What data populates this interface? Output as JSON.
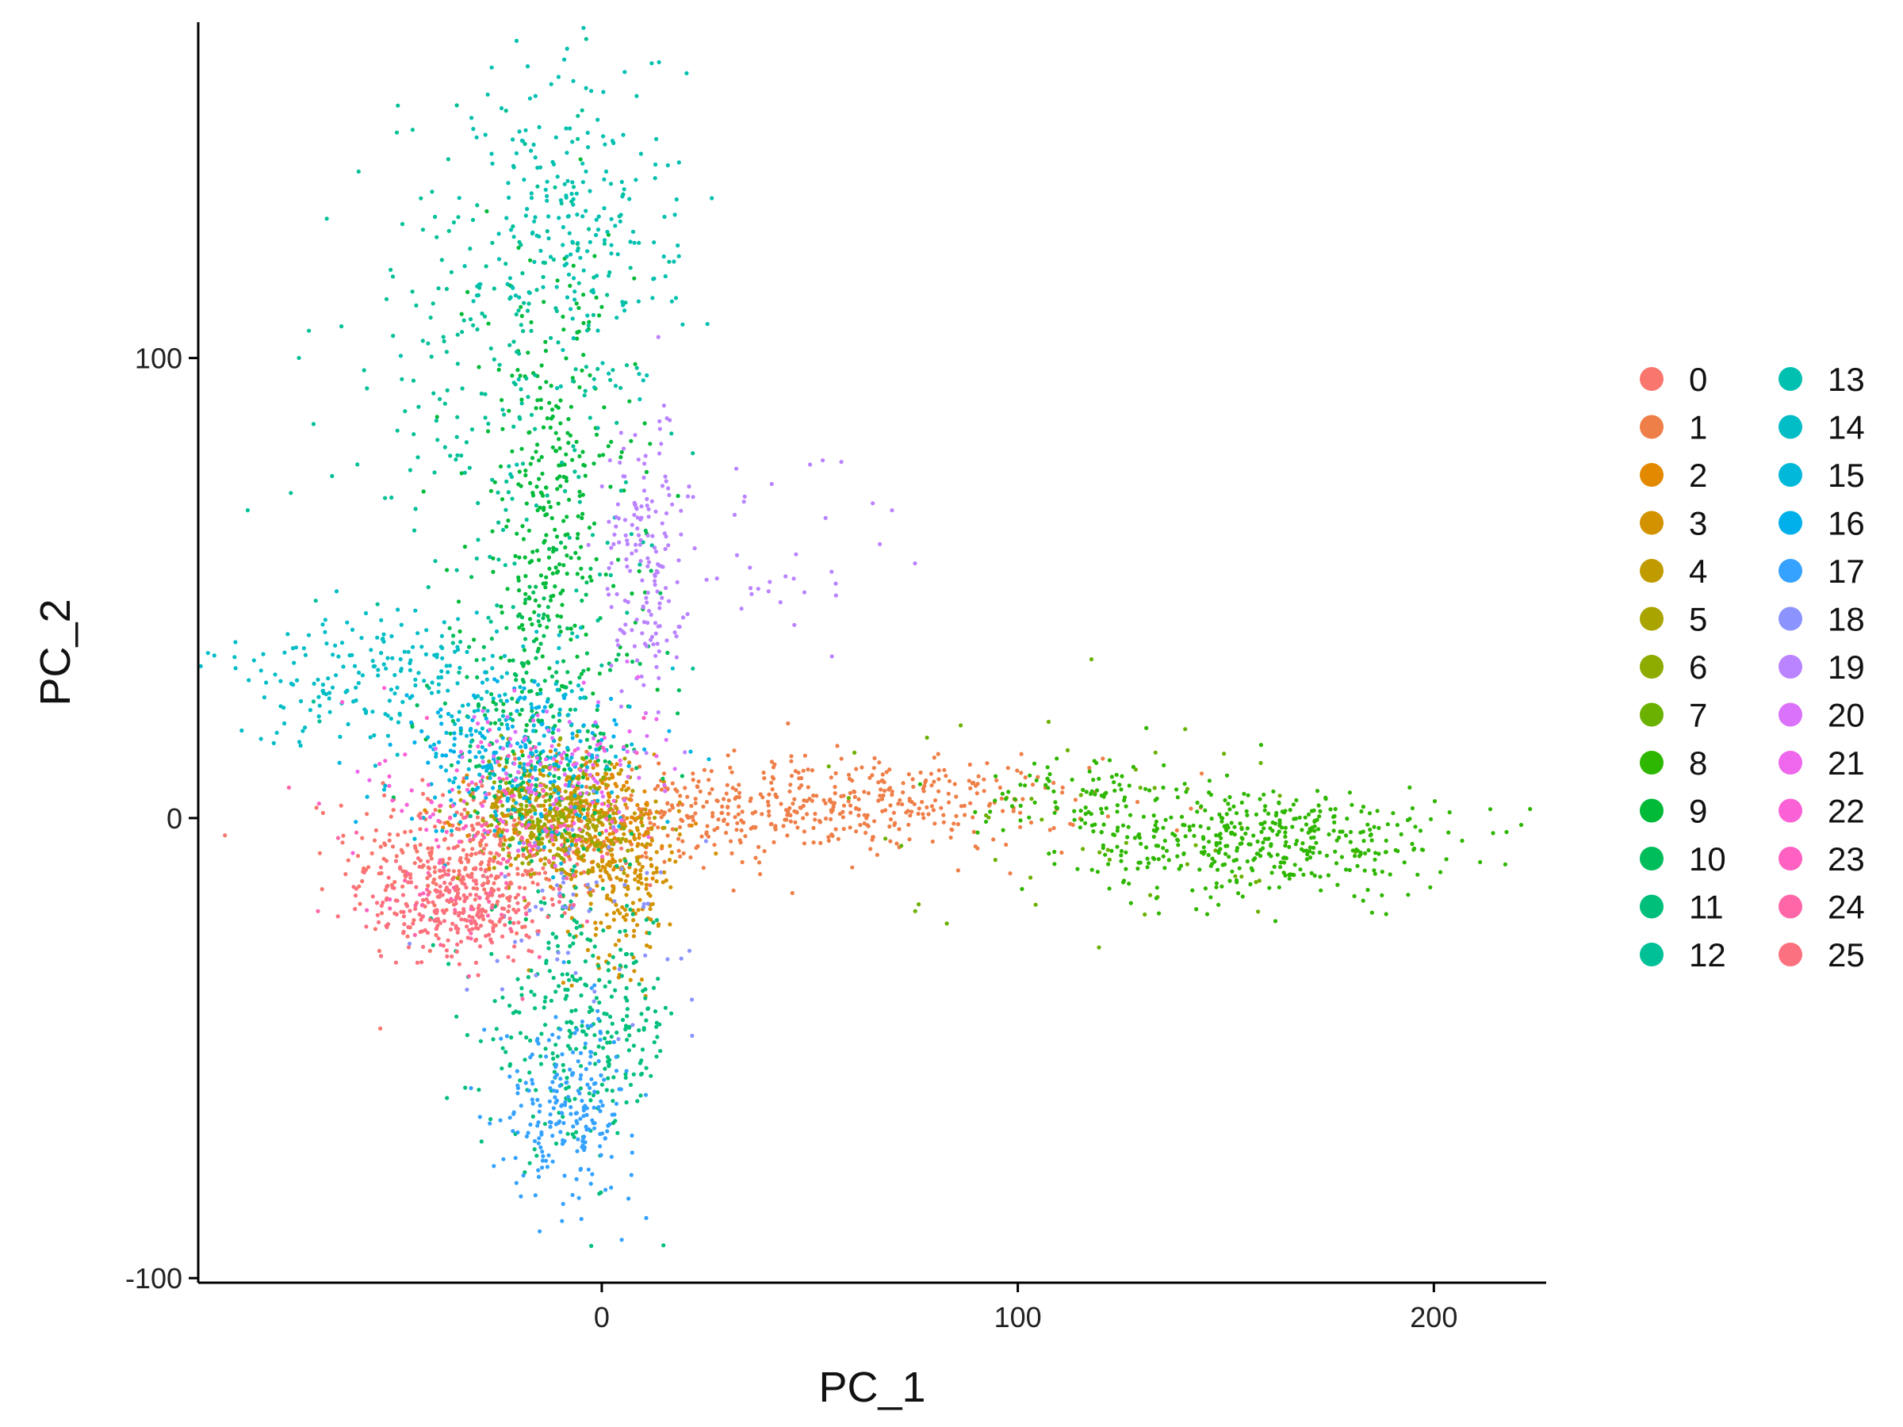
{
  "chart_data": {
    "type": "scatter",
    "title": "",
    "xlabel": "PC_1",
    "ylabel": "PC_2",
    "xlim": [
      -97,
      227
    ],
    "ylim": [
      -101,
      173
    ],
    "x_ticks": [
      0,
      100,
      200
    ],
    "x_tick_labels": [
      "0",
      "100",
      "200"
    ],
    "y_ticks": [
      -100,
      0,
      100
    ],
    "y_tick_labels": [
      "-100",
      "0",
      "100"
    ],
    "grid": false,
    "legend_placement": "right",
    "legend_columns": 2,
    "series": [
      {
        "name": "0",
        "color": "#F8766D",
        "clusters": [
          {
            "center": [
              -30,
              -8
            ],
            "spread": [
              15,
              9
            ],
            "n": 380
          }
        ]
      },
      {
        "name": "1",
        "color": "#EF7F49",
        "clusters": [
          {
            "center": [
              60,
              3
            ],
            "spread": [
              28,
              5
            ],
            "n": 380
          },
          {
            "center": [
              15,
              0
            ],
            "spread": [
              18,
              6
            ],
            "n": 160
          }
        ]
      },
      {
        "name": "2",
        "color": "#E38900",
        "clusters": [
          {
            "center": [
              -5,
              0
            ],
            "spread": [
              12,
              7
            ],
            "n": 200
          }
        ]
      },
      {
        "name": "3",
        "color": "#D39200",
        "clusters": [
          {
            "center": [
              5,
              -12
            ],
            "spread": [
              7,
              10
            ],
            "n": 220
          }
        ]
      },
      {
        "name": "4",
        "color": "#C09B00",
        "clusters": [
          {
            "center": [
              -12,
              2
            ],
            "spread": [
              10,
              6
            ],
            "n": 160
          }
        ]
      },
      {
        "name": "5",
        "color": "#A9A400",
        "clusters": [
          {
            "center": [
              -8,
              -2
            ],
            "spread": [
              9,
              6
            ],
            "n": 150
          }
        ]
      },
      {
        "name": "6",
        "color": "#8EAB00",
        "clusters": [
          {
            "center": [
              -15,
              3
            ],
            "spread": [
              8,
              6
            ],
            "n": 120
          }
        ]
      },
      {
        "name": "7",
        "color": "#6BB100",
        "clusters": [
          {
            "center": [
              115,
              0
            ],
            "spread": [
              30,
              12
            ],
            "n": 50
          }
        ]
      },
      {
        "name": "8",
        "color": "#2EB700",
        "clusters": [
          {
            "center": [
              160,
              -5
            ],
            "spread": [
              22,
              6
            ],
            "n": 420
          },
          {
            "center": [
              115,
              5
            ],
            "spread": [
              12,
              5
            ],
            "n": 90
          }
        ]
      },
      {
        "name": "9",
        "color": "#00BA38",
        "clusters": [
          {
            "center": [
              -12,
              65
            ],
            "spread": [
              10,
              28
            ],
            "n": 340
          }
        ]
      },
      {
        "name": "10",
        "color": "#00BD5C",
        "clusters": [
          {
            "center": [
              -15,
              20
            ],
            "spread": [
              14,
              15
            ],
            "n": 220
          }
        ]
      },
      {
        "name": "11",
        "color": "#00BF7B",
        "clusters": [
          {
            "center": [
              -5,
              -45
            ],
            "spread": [
              12,
              14
            ],
            "n": 300
          }
        ]
      },
      {
        "name": "12",
        "color": "#00C097",
        "clusters": [
          {
            "center": [
              -25,
              95
            ],
            "spread": [
              18,
              30
            ],
            "n": 260
          }
        ]
      },
      {
        "name": "13",
        "color": "#00C0B0",
        "clusters": [
          {
            "center": [
              -5,
              130
            ],
            "spread": [
              12,
              20
            ],
            "n": 220
          }
        ]
      },
      {
        "name": "14",
        "color": "#00BDC6",
        "clusters": [
          {
            "center": [
              -50,
              30
            ],
            "spread": [
              22,
              7
            ],
            "n": 220
          }
        ]
      },
      {
        "name": "15",
        "color": "#00B8DA",
        "clusters": [
          {
            "center": [
              -20,
              10
            ],
            "spread": [
              14,
              8
            ],
            "n": 160
          }
        ]
      },
      {
        "name": "16",
        "color": "#00B0EB",
        "clusters": [
          {
            "center": [
              -20,
              15
            ],
            "spread": [
              15,
              8
            ],
            "n": 120
          }
        ]
      },
      {
        "name": "17",
        "color": "#35A2FF",
        "clusters": [
          {
            "center": [
              -8,
              -62
            ],
            "spread": [
              8,
              10
            ],
            "n": 220
          }
        ]
      },
      {
        "name": "18",
        "color": "#8B93FF",
        "clusters": [
          {
            "center": [
              -5,
              -20
            ],
            "spread": [
              14,
              10
            ],
            "n": 60
          }
        ]
      },
      {
        "name": "19",
        "color": "#BA83FF",
        "clusters": [
          {
            "center": [
              10,
              55
            ],
            "spread": [
              5,
              15
            ],
            "n": 160
          },
          {
            "center": [
              45,
              58
            ],
            "spread": [
              18,
              15
            ],
            "n": 40
          }
        ]
      },
      {
        "name": "20",
        "color": "#DB72FB",
        "clusters": [
          {
            "center": [
              -10,
              12
            ],
            "spread": [
              12,
              8
            ],
            "n": 60
          }
        ]
      },
      {
        "name": "21",
        "color": "#EE67ED",
        "clusters": [
          {
            "center": [
              -15,
              10
            ],
            "spread": [
              14,
              8
            ],
            "n": 60
          }
        ]
      },
      {
        "name": "22",
        "color": "#FB61D7",
        "clusters": [
          {
            "center": [
              -25,
              5
            ],
            "spread": [
              15,
              10
            ],
            "n": 50
          }
        ]
      },
      {
        "name": "23",
        "color": "#FF61C2",
        "clusters": [
          {
            "center": [
              -20,
              0
            ],
            "spread": [
              15,
              10
            ],
            "n": 50
          }
        ]
      },
      {
        "name": "24",
        "color": "#FF66A8",
        "clusters": [
          {
            "center": [
              -30,
              -15
            ],
            "spread": [
              14,
              10
            ],
            "n": 60
          }
        ]
      },
      {
        "name": "25",
        "color": "#FC717F",
        "clusters": [
          {
            "center": [
              -35,
              -20
            ],
            "spread": [
              10,
              6
            ],
            "n": 240
          }
        ]
      }
    ]
  }
}
